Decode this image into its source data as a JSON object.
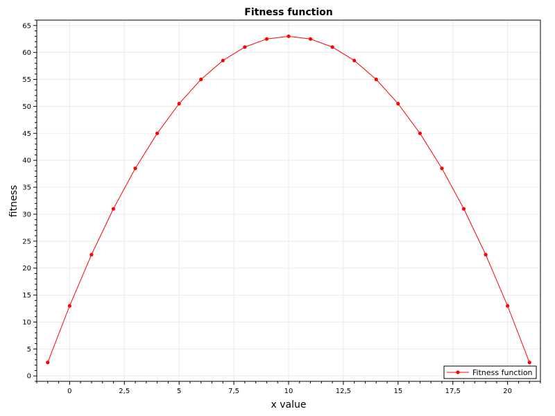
{
  "chart_data": {
    "type": "line",
    "title": "Fitness function",
    "xlabel": "x value",
    "ylabel": "fitness",
    "xlim": [
      -1.5,
      21.5
    ],
    "ylim": [
      -1,
      66
    ],
    "x_ticks": [
      0,
      2.5,
      5,
      7.5,
      10,
      12.5,
      15,
      17.5,
      20
    ],
    "x_tick_labels": [
      "0",
      "2,5",
      "5",
      "7,5",
      "10",
      "12,5",
      "15",
      "17,5",
      "20"
    ],
    "y_ticks": [
      0,
      5,
      10,
      15,
      20,
      25,
      30,
      35,
      40,
      45,
      50,
      55,
      60,
      65
    ],
    "y_tick_labels": [
      "0",
      "5",
      "10",
      "15",
      "20",
      "25",
      "30",
      "35",
      "40",
      "45",
      "50",
      "55",
      "60",
      "65"
    ],
    "grid": true,
    "legend_position": "bottom-right",
    "series": [
      {
        "name": "Fitness function",
        "color": "#ff0000",
        "x": [
          -1,
          0,
          1,
          2,
          3,
          4,
          5,
          6,
          7,
          8,
          9,
          10,
          11,
          12,
          13,
          14,
          15,
          16,
          17,
          18,
          19,
          20,
          21
        ],
        "y": [
          2.5,
          13,
          22.5,
          31,
          38.5,
          45,
          50.5,
          55,
          58.5,
          61,
          62.5,
          63,
          62.5,
          61,
          58.5,
          55,
          50.5,
          45,
          38.5,
          31,
          22.5,
          13,
          2.5
        ]
      }
    ]
  }
}
